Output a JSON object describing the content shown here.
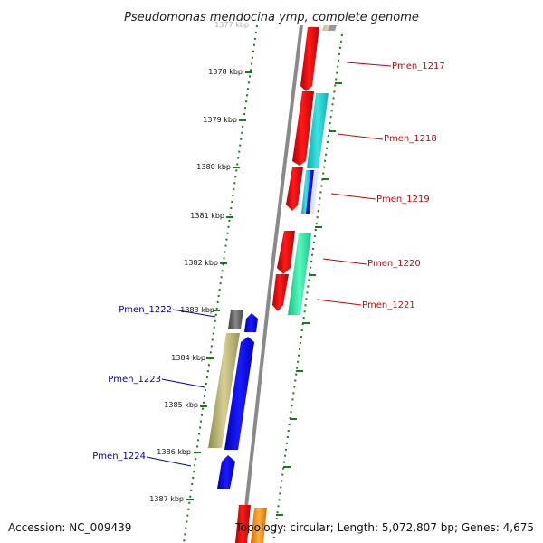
{
  "title": "Pseudomonas mendocina ymp, complete genome",
  "footer": {
    "accession": "Accession: NC_009439",
    "topology": "Topology: circular; Length: 5,072,807 bp; Genes: 4,675"
  },
  "ticks": [
    "1377 kbp",
    "1378 kbp",
    "1379 kbp",
    "1380 kbp",
    "1381 kbp",
    "1382 kbp",
    "1383 kbp",
    "1384 kbp",
    "1385 kbp",
    "1386 kbp",
    "1387 kbp"
  ],
  "genes": {
    "forward": [
      {
        "label": "Pmen_1217",
        "color": "#cc0000"
      },
      {
        "label": "Pmen_1218",
        "color": "#cc0000"
      },
      {
        "label": "Pmen_1219",
        "color": "#cc0000"
      },
      {
        "label": "Pmen_1220",
        "color": "#cc0000"
      },
      {
        "label": "Pmen_1221",
        "color": "#cc0000"
      }
    ],
    "reverse": [
      {
        "label": "Pmen_1222",
        "color": "#00009c"
      },
      {
        "label": "Pmen_1223",
        "color": "#00009c"
      },
      {
        "label": "Pmen_1224",
        "color": "#00009c"
      }
    ]
  },
  "colors": {
    "backbone": "#8a8a8a",
    "tick_dots": "#1a7a1a",
    "red": "#ee0000",
    "cyan": "#19c6c6",
    "mint": "#19e69a",
    "blue": "#0000ee",
    "olive": "#b3ad6c",
    "gray": "#555555",
    "orange": "#ff8c00"
  }
}
